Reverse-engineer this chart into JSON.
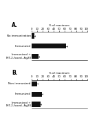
{
  "panel_A": {
    "label": "A.",
    "xlabel": "% of maximum",
    "bars": [
      {
        "label": "No immunization",
        "value": 5,
        "error": 0.8
      },
      {
        "label": "Immunized",
        "value": 62,
        "error": 3
      },
      {
        "label": "Immunized +\nMT-2-fused- Ag20",
        "value": 12,
        "error": 1.5
      }
    ],
    "xlim": [
      0,
      100
    ],
    "xtick_labels": [
      "0",
      "10",
      "20",
      "30",
      "40",
      "50",
      "60",
      "70",
      "80",
      "90",
      "100"
    ]
  },
  "panel_B": {
    "label": "B.",
    "xlabel": "% of maximum",
    "bars": [
      {
        "label": "Non immunized",
        "value": 10,
        "error": 1
      },
      {
        "label": "Immunized",
        "value": 18,
        "error": 1.5
      },
      {
        "label": "Immunized +\nMT-2-fused- Ag20",
        "value": 16,
        "error": 1.5
      }
    ],
    "xlim": [
      0,
      100
    ],
    "xtick_labels": [
      "0",
      "10",
      "20",
      "30",
      "40",
      "50",
      "60",
      "70",
      "80",
      "90",
      "100"
    ]
  },
  "bar_color": "#111111",
  "bg_color": "#ffffff",
  "label_fontsize": 3.0,
  "tick_fontsize": 2.8,
  "panel_label_fontsize": 5.5,
  "xlabel_fontsize": 2.8
}
